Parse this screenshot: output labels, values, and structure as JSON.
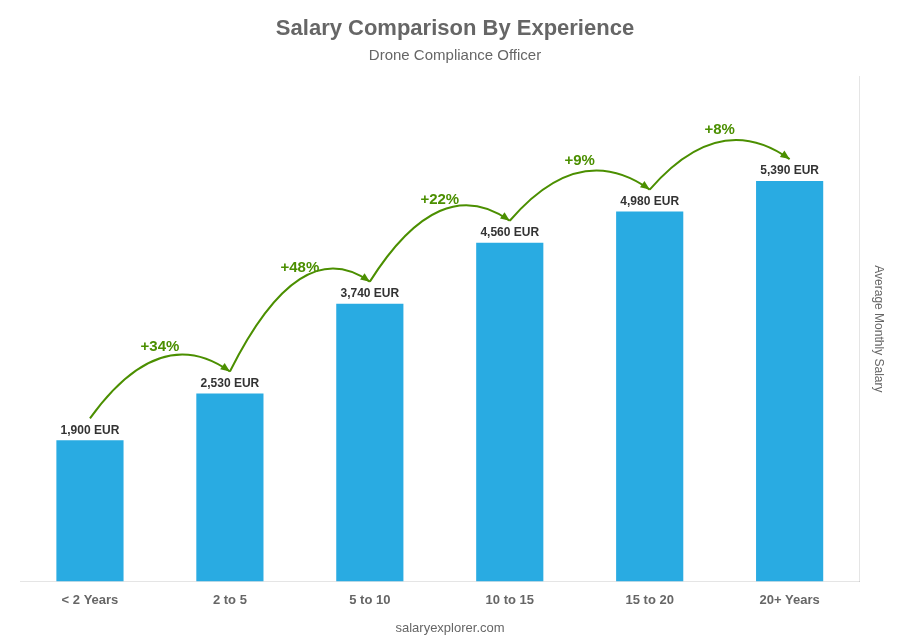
{
  "chart_data": {
    "type": "bar",
    "title": "Salary Comparison By Experience",
    "subtitle": "Drone Compliance Officer",
    "categories": [
      "< 2 Years",
      "2 to 5",
      "5 to 10",
      "10 to 15",
      "15 to 20",
      "20+ Years"
    ],
    "values": [
      1900,
      2530,
      3740,
      4560,
      4980,
      5390
    ],
    "value_labels": [
      "1,900 EUR",
      "2,530 EUR",
      "3,740 EUR",
      "4,560 EUR",
      "4,980 EUR",
      "5,390 EUR"
    ],
    "data_labels": true,
    "color": "#29ABE2",
    "ylabel": "Average Monthly Salary",
    "ylim": [
      0,
      6800
    ],
    "tick_labels": "x",
    "grid": false,
    "annotations": [
      "+34%",
      "+48%",
      "+22%",
      "+9%",
      "+8%"
    ],
    "watermark": "salaryexplorer.com"
  }
}
